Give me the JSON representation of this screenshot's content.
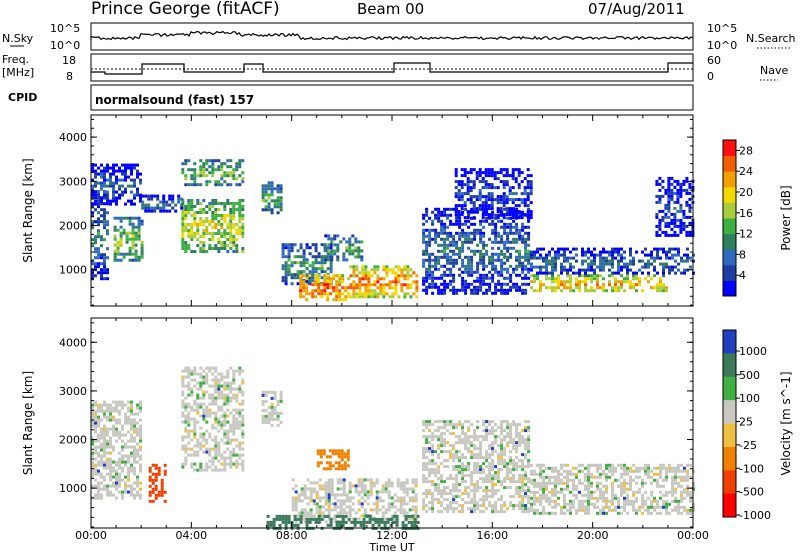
{
  "header": {
    "site": "Prince George (fitACF)",
    "beam": "Beam 00",
    "date": "07/Aug/2011"
  },
  "strips": {
    "nsky_label": "N.Sky",
    "nsearch_label": "N.Search",
    "nsky_ticks": [
      "10^5",
      "10^0"
    ],
    "freq_label_1": "Freq.",
    "freq_label_2": "[MHz]",
    "freq_ticks": [
      "18",
      "8"
    ],
    "nave_label": "Nave",
    "nave_ticks": [
      "60",
      "0"
    ],
    "cpid_label": "CPID",
    "cpid_value": "normalsound (fast) 157"
  },
  "chart_data": [
    {
      "type": "heatmap",
      "panel": "power",
      "xlabel": "",
      "ylabel": "Slant Range [km]",
      "x_ticks": [
        "00:00",
        "04:00",
        "08:00",
        "12:00",
        "16:00",
        "20:00",
        "00:00"
      ],
      "xlim_hours": [
        0,
        24
      ],
      "ylim": [
        180,
        4500
      ],
      "y_ticks": [
        1000,
        2000,
        3000,
        4000
      ],
      "colorbar": {
        "label": "Power [dB]",
        "ticks": [
          "4",
          "8",
          "12",
          "16",
          "20",
          "24",
          "28"
        ],
        "range": [
          0,
          30
        ],
        "colors": [
          "#0000ff",
          "#1f3fa0",
          "#2f6ac0",
          "#2f7f5f",
          "#3cb040",
          "#a8cc3a",
          "#f0d800",
          "#f2a000",
          "#f06000",
          "#ff1010"
        ]
      },
      "regions": [
        {
          "x0": 0.0,
          "x1": 0.6,
          "y0": 800,
          "y1": 2800,
          "v": 9
        },
        {
          "x0": 0.9,
          "x1": 2.0,
          "y0": 1200,
          "y1": 2200,
          "v": 16
        },
        {
          "x0": 0.0,
          "x1": 2.0,
          "y0": 2500,
          "y1": 3400,
          "v": 7
        },
        {
          "x0": 3.6,
          "x1": 6.0,
          "y0": 1400,
          "y1": 2600,
          "v": 19
        },
        {
          "x0": 3.6,
          "x1": 6.0,
          "y0": 2900,
          "y1": 3500,
          "v": 15
        },
        {
          "x0": 2.0,
          "x1": 3.6,
          "y0": 2300,
          "y1": 2700,
          "v": 8
        },
        {
          "x0": 6.8,
          "x1": 7.6,
          "y0": 2300,
          "y1": 3000,
          "v": 14
        },
        {
          "x0": 7.6,
          "x1": 9.6,
          "y0": 700,
          "y1": 1600,
          "v": 12
        },
        {
          "x0": 8.3,
          "x1": 10.3,
          "y0": 300,
          "y1": 900,
          "v": 26
        },
        {
          "x0": 10.3,
          "x1": 13.0,
          "y0": 400,
          "y1": 1100,
          "v": 25
        },
        {
          "x0": 9.3,
          "x1": 10.8,
          "y0": 1200,
          "y1": 1800,
          "v": 13
        },
        {
          "x0": 13.2,
          "x1": 17.5,
          "y0": 500,
          "y1": 2400,
          "v": 9
        },
        {
          "x0": 14.5,
          "x1": 17.5,
          "y0": 2200,
          "y1": 3300,
          "v": 6
        },
        {
          "x0": 17.5,
          "x1": 23.0,
          "y0": 500,
          "y1": 900,
          "v": 22
        },
        {
          "x0": 17.5,
          "x1": 24.0,
          "y0": 900,
          "y1": 1500,
          "v": 9
        },
        {
          "x0": 22.5,
          "x1": 24.0,
          "y0": 1800,
          "y1": 3100,
          "v": 6
        }
      ]
    },
    {
      "type": "heatmap",
      "panel": "velocity",
      "xlabel": "Time UT",
      "ylabel": "Slant Range [km]",
      "x_ticks": [
        "00:00",
        "04:00",
        "08:00",
        "12:00",
        "16:00",
        "20:00",
        "00:00"
      ],
      "xlim_hours": [
        0,
        24
      ],
      "ylim": [
        180,
        4500
      ],
      "y_ticks": [
        1000,
        2000,
        3000,
        4000
      ],
      "colorbar": {
        "label": "Velocity [m s^-1]",
        "ticks": [
          "1000",
          "500",
          "100",
          "25",
          "-25",
          "-100",
          "-500",
          "-1000"
        ],
        "colors": [
          "#2040c0",
          "#3a7a5a",
          "#40b040",
          "#c8c8c0",
          "#f0c040",
          "#f08000",
          "#f04000",
          "#ff0000"
        ]
      },
      "regions": [
        {
          "x0": 0.0,
          "x1": 2.0,
          "y0": 800,
          "y1": 2800,
          "v": 0
        },
        {
          "x0": 3.6,
          "x1": 6.0,
          "y0": 1400,
          "y1": 3500,
          "v": 0
        },
        {
          "x0": 6.8,
          "x1": 7.6,
          "y0": 2300,
          "y1": 3000,
          "v": 0
        },
        {
          "x0": 8.0,
          "x1": 13.0,
          "y0": 300,
          "y1": 1200,
          "v": 0
        },
        {
          "x0": 9.0,
          "x1": 10.2,
          "y0": 1400,
          "y1": 1800,
          "v": -100
        },
        {
          "x0": 7.0,
          "x1": 13.0,
          "y0": 180,
          "y1": 450,
          "v": 100
        },
        {
          "x0": 13.2,
          "x1": 17.5,
          "y0": 500,
          "y1": 2400,
          "v": 0
        },
        {
          "x0": 17.5,
          "x1": 24.0,
          "y0": 500,
          "y1": 1500,
          "v": 0
        },
        {
          "x0": 2.3,
          "x1": 3.0,
          "y0": 700,
          "y1": 1500,
          "v": -500
        }
      ]
    }
  ]
}
